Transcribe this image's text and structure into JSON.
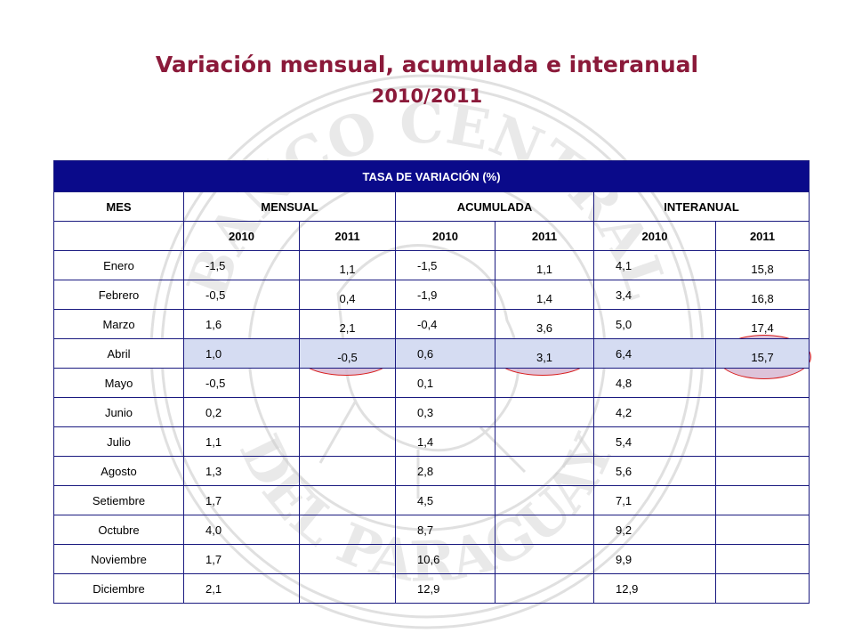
{
  "title": "Variación mensual, acumulada e interanual",
  "subtitle": "2010/2011",
  "watermark": {
    "top_text": "BANCO CENTRAL",
    "bottom_text": "DEL PARAGUAY"
  },
  "table": {
    "header": "TASA DE VARIACIÓN (%)",
    "col_mes": "MES",
    "groups": [
      "MENSUAL",
      "ACUMULADA",
      "INTERANUAL"
    ],
    "years": [
      "2010",
      "2011",
      "2010",
      "2011",
      "2010",
      "2011"
    ],
    "rows": [
      {
        "mes": "Enero",
        "m2010": "-1,5",
        "m2011": "1,1",
        "a2010": "-1,5",
        "a2011": "1,1",
        "i2010": "4,1",
        "i2011": "15,8"
      },
      {
        "mes": "Febrero",
        "m2010": "-0,5",
        "m2011": "0,4",
        "a2010": "-1,9",
        "a2011": "1,4",
        "i2010": "3,4",
        "i2011": "16,8"
      },
      {
        "mes": "Marzo",
        "m2010": "1,6",
        "m2011": "2,1",
        "a2010": "-0,4",
        "a2011": "3,6",
        "i2010": "5,0",
        "i2011": "17,4"
      },
      {
        "mes": "Abril",
        "m2010": "1,0",
        "m2011": "-0,5",
        "a2010": "0,6",
        "a2011": "3,1",
        "i2010": "6,4",
        "i2011": "15,7"
      },
      {
        "mes": "Mayo",
        "m2010": "-0,5",
        "m2011": "",
        "a2010": "0,1",
        "a2011": "",
        "i2010": "4,8",
        "i2011": ""
      },
      {
        "mes": "Junio",
        "m2010": "0,2",
        "m2011": "",
        "a2010": "0,3",
        "a2011": "",
        "i2010": "4,2",
        "i2011": ""
      },
      {
        "mes": "Julio",
        "m2010": "1,1",
        "m2011": "",
        "a2010": "1,4",
        "a2011": "",
        "i2010": "5,4",
        "i2011": ""
      },
      {
        "mes": "Agosto",
        "m2010": "1,3",
        "m2011": "",
        "a2010": "2,8",
        "a2011": "",
        "i2010": "5,6",
        "i2011": ""
      },
      {
        "mes": "Setiembre",
        "m2010": "1,7",
        "m2011": "",
        "a2010": "4,5",
        "a2011": "",
        "i2010": "7,1",
        "i2011": ""
      },
      {
        "mes": "Octubre",
        "m2010": "4,0",
        "m2011": "",
        "a2010": "8,7",
        "a2011": "",
        "i2010": "9,2",
        "i2011": ""
      },
      {
        "mes": "Noviembre",
        "m2010": "1,7",
        "m2011": "",
        "a2010": "10,6",
        "a2011": "",
        "i2010": "9,9",
        "i2011": ""
      },
      {
        "mes": "Diciembre",
        "m2010": "2,1",
        "m2011": "",
        "a2010": "12,9",
        "a2011": "",
        "i2010": "12,9",
        "i2011": ""
      }
    ]
  },
  "colors": {
    "title": "#8b1a3a",
    "header_bg": "#0a0a8a",
    "highlight_row": "#d5dcf2",
    "circle_stroke": "#d81e1e"
  }
}
